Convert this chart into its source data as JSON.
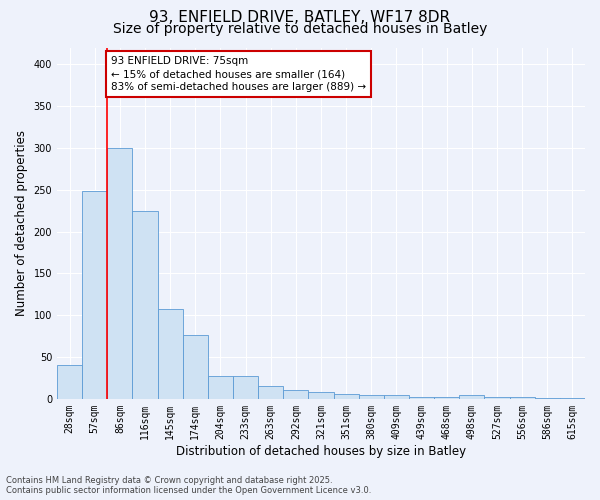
{
  "title_line1": "93, ENFIELD DRIVE, BATLEY, WF17 8DR",
  "title_line2": "Size of property relative to detached houses in Batley",
  "xlabel": "Distribution of detached houses by size in Batley",
  "ylabel": "Number of detached properties",
  "categories": [
    "28sqm",
    "57sqm",
    "86sqm",
    "116sqm",
    "145sqm",
    "174sqm",
    "204sqm",
    "233sqm",
    "263sqm",
    "292sqm",
    "321sqm",
    "351sqm",
    "380sqm",
    "409sqm",
    "439sqm",
    "468sqm",
    "498sqm",
    "527sqm",
    "556sqm",
    "586sqm",
    "615sqm"
  ],
  "values": [
    40,
    248,
    300,
    224,
    107,
    76,
    27,
    27,
    15,
    10,
    8,
    6,
    4,
    4,
    2,
    2,
    4,
    2,
    2,
    1,
    1
  ],
  "bar_color": "#cfe2f3",
  "bar_edge_color": "#5b9bd5",
  "background_color": "#eef2fb",
  "red_line_x": 1.5,
  "annotation_text": "93 ENFIELD DRIVE: 75sqm\n← 15% of detached houses are smaller (164)\n83% of semi-detached houses are larger (889) →",
  "annotation_box_color": "#ffffff",
  "annotation_box_edge": "#cc0000",
  "ylim": [
    0,
    420
  ],
  "yticks": [
    0,
    50,
    100,
    150,
    200,
    250,
    300,
    350,
    400
  ],
  "footer_line1": "Contains HM Land Registry data © Crown copyright and database right 2025.",
  "footer_line2": "Contains public sector information licensed under the Open Government Licence v3.0.",
  "title_fontsize": 11,
  "subtitle_fontsize": 10,
  "tick_fontsize": 7,
  "xlabel_fontsize": 8.5,
  "ylabel_fontsize": 8.5,
  "annotation_fontsize": 7.5,
  "footer_fontsize": 6
}
